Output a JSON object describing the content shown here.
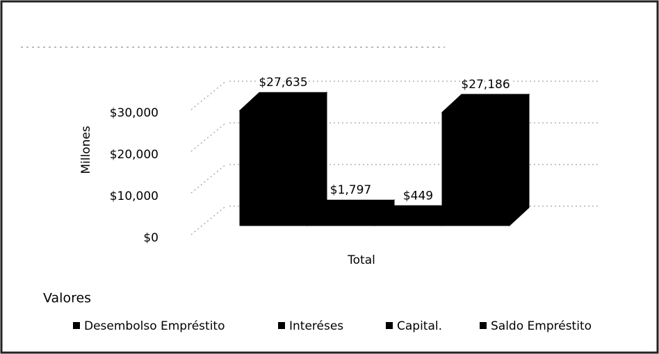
{
  "chart_data": {
    "type": "bar3d",
    "y_label": "Millones",
    "categories": [
      "Total"
    ],
    "series": [
      {
        "name": "Desembolso Empréstito",
        "color": "#000000",
        "values": [
          27635
        ],
        "value_labels": [
          "$27,635"
        ]
      },
      {
        "name": "Interéses",
        "color": "#000000",
        "values": [
          1797
        ],
        "value_labels": [
          "$1,797"
        ]
      },
      {
        "name": "Capital.",
        "color": "#000000",
        "values": [
          449
        ],
        "value_labels": [
          "$449"
        ]
      },
      {
        "name": "Saldo Empréstito",
        "color": "#000000",
        "values": [
          27186
        ],
        "value_labels": [
          "$27,186"
        ]
      }
    ],
    "ylim": [
      0,
      30000
    ],
    "yticks": [
      {
        "value": 0,
        "label": "$0"
      },
      {
        "value": 10000,
        "label": "$10,000"
      },
      {
        "value": 20000,
        "label": "$20,000"
      },
      {
        "value": 30000,
        "label": "$30,000"
      }
    ],
    "grid": true,
    "legend": {
      "title": "Valores",
      "position": "bottom"
    }
  }
}
